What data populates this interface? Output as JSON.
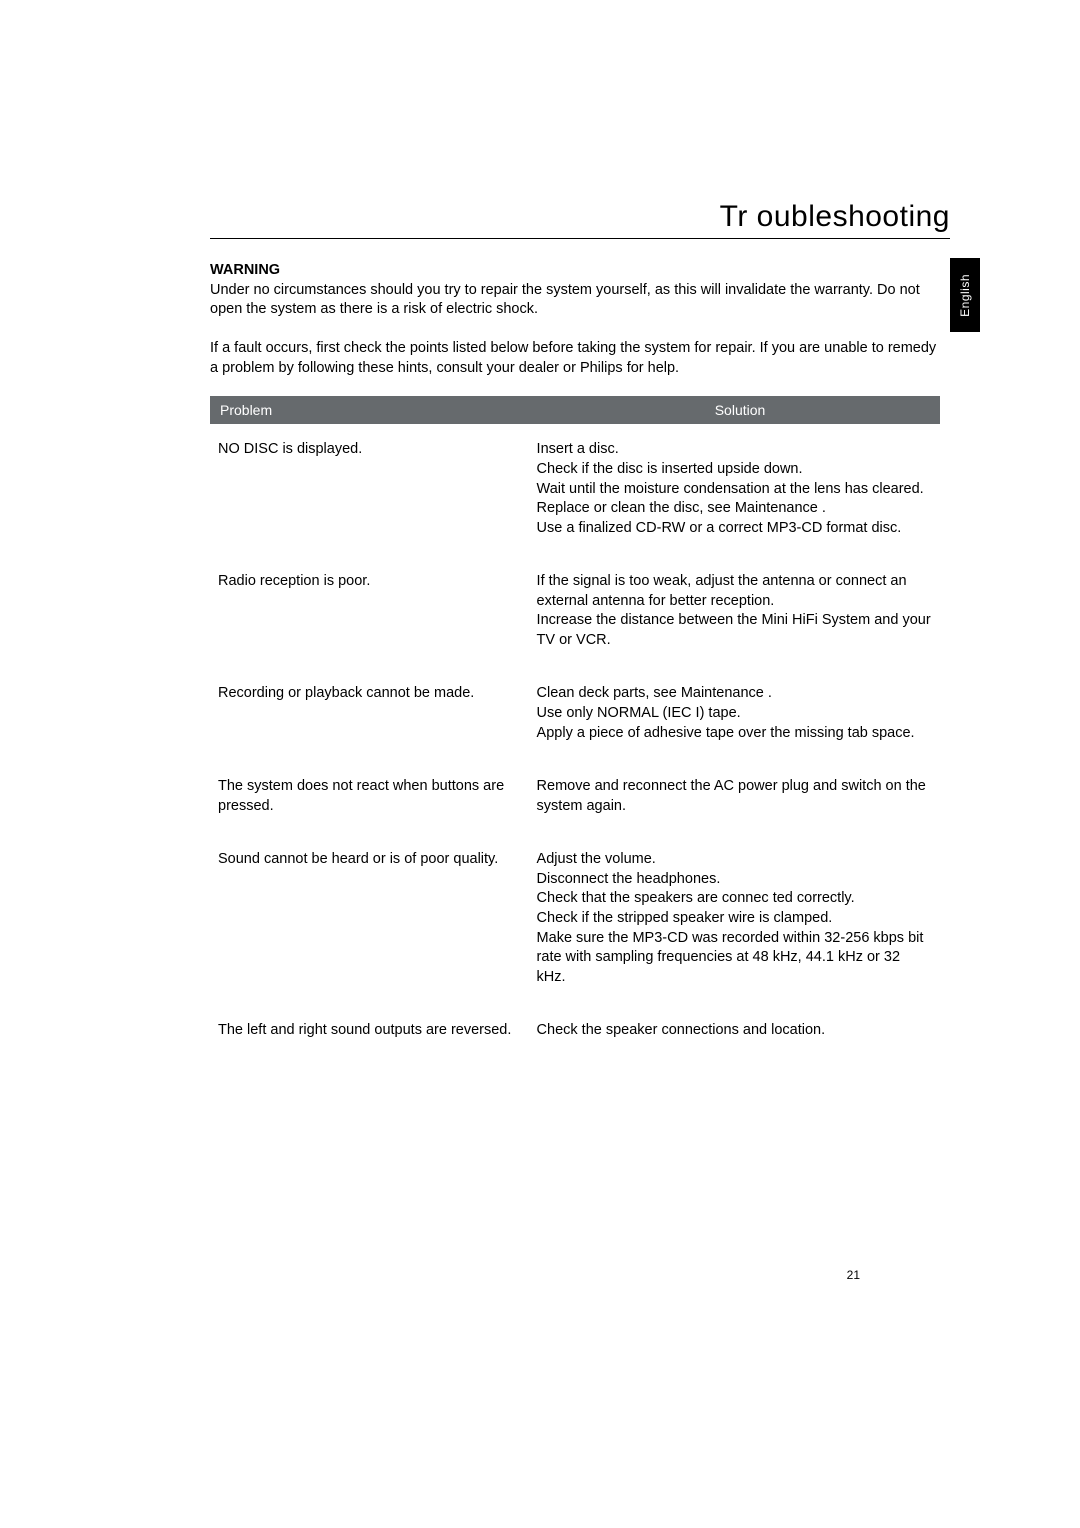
{
  "page": {
    "title": "Tr oubleshooting",
    "language_tab": "English",
    "page_number": "21"
  },
  "intro": {
    "warning_label": "WARNING",
    "warning_text": "Under no circumstances should you try to repair the system yourself, as this will invalidate the warranty.  Do not open the system as there is a risk of electric shock.",
    "fault_text": "If a fault occurs, first check the points listed below before taking the system for repair. If you are unable to remedy a problem by following these hints, consult your dealer or Philips for help."
  },
  "table": {
    "header_problem": "Problem",
    "header_solution": "Solution",
    "header_bg": "#666a6d",
    "header_fg": "#ffffff",
    "rows": [
      {
        "problem": "NO DISC  is displayed.",
        "solutions": [
          "Insert a disc.",
          "Check if the disc is inserted upside down.",
          "Wait until the moisture condensation at the lens has cleared.",
          "Replace or clean the disc, see  Maintenance .",
          "Use a finalized CD-RW or a correct MP3-CD format disc."
        ]
      },
      {
        "problem": "Radio reception is poor.",
        "solutions": [
          "If the signal is too weak, adjust the antenna or connect an external antenna for better reception.",
          "Increase the distance between the Mini HiFi System and your TV or VCR."
        ]
      },
      {
        "problem": "Recording or playback cannot be made.",
        "solutions": [
          "Clean deck parts, see  Maintenance .",
          "Use only NORMAL (IEC I) tape.",
          "Apply a piece of adhesive tape over the missing tab space."
        ]
      },
      {
        "problem": "The system does not react when buttons are pressed.",
        "solutions": [
          "Remove and reconnect the AC power plug and switch on the system again."
        ]
      },
      {
        "problem": "Sound cannot be heard or is of poor quality.",
        "solutions": [
          "Adjust the volume.",
          "Disconnect the headphones.",
          "Check that the speakers are connec ted correctly.",
          "Check if the stripped speaker wire is clamped.",
          "Make sure the MP3-CD was recorded within 32-256 kbps bit rate with sampling frequencies at 48 kHz, 44.1 kHz or 32 kHz."
        ]
      },
      {
        "problem": "The left and right sound outputs are reversed.",
        "solutions": [
          "Check the speaker connections and location."
        ]
      }
    ]
  }
}
